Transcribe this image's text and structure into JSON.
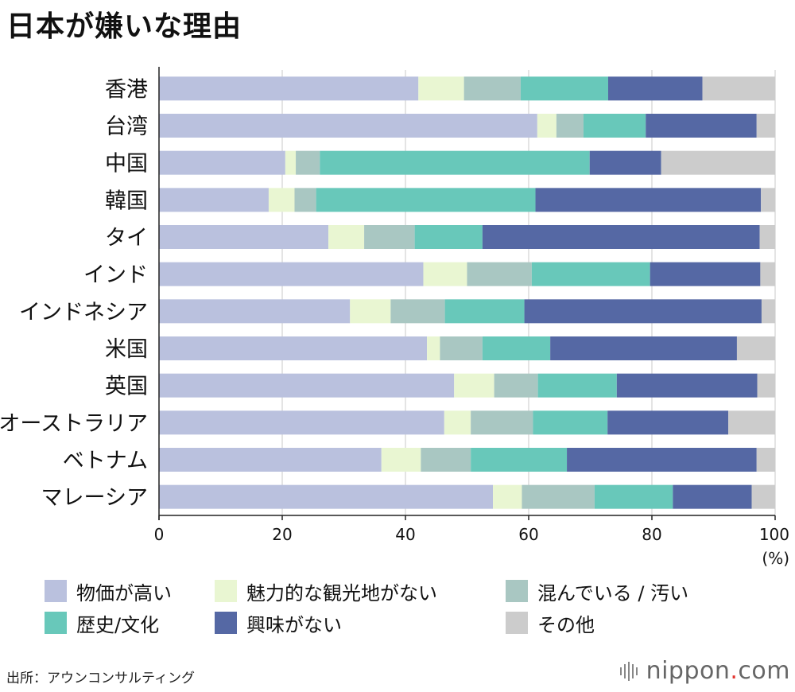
{
  "title": "日本が嫌いな理由",
  "chart_data": {
    "type": "bar",
    "orientation": "horizontal",
    "stacked": true,
    "title": "日本が嫌いな理由",
    "xlabel": "(%)",
    "ylabel": "",
    "xlim": [
      0,
      100
    ],
    "x_ticks": [
      "0",
      "20",
      "40",
      "60",
      "80",
      "100"
    ],
    "x_tick_values": [
      0,
      20,
      40,
      60,
      80,
      100
    ],
    "grid": true,
    "categories": [
      "香港",
      "台湾",
      "中国",
      "韓国",
      "タイ",
      "インド",
      "インドネシア",
      "米国",
      "英国",
      "オーストラリア",
      "ベトナム",
      "マレーシア"
    ],
    "series": [
      {
        "name": "物価が高い",
        "color": "#bac1de",
        "values": [
          42.1,
          61.4,
          20.5,
          17.8,
          27.5,
          42.9,
          31.0,
          43.5,
          47.9,
          46.3,
          36.1,
          54.2
        ]
      },
      {
        "name": "魅力的な観光地がない",
        "color": "#e9f6d2",
        "values": [
          7.4,
          3.1,
          1.7,
          4.2,
          5.8,
          7.1,
          6.6,
          2.1,
          6.5,
          4.3,
          6.4,
          4.7
        ]
      },
      {
        "name": "混んでいる / 汚い",
        "color": "#a9c7c2",
        "values": [
          9.2,
          4.4,
          3.9,
          3.5,
          8.2,
          10.5,
          8.8,
          6.9,
          7.1,
          10.1,
          8.1,
          11.8
        ]
      },
      {
        "name": "歴史/文化",
        "color": "#68c8ba",
        "values": [
          14.2,
          10.1,
          43.8,
          35.6,
          11.0,
          19.2,
          12.9,
          11.0,
          12.8,
          12.1,
          15.6,
          12.7
        ]
      },
      {
        "name": "興味がない",
        "color": "#5568a4",
        "values": [
          15.3,
          18.0,
          11.6,
          36.6,
          45.0,
          17.9,
          38.5,
          30.3,
          22.8,
          19.6,
          30.8,
          12.8
        ]
      },
      {
        "name": "その他",
        "color": "#cccccc",
        "values": [
          11.8,
          3.0,
          18.5,
          2.3,
          2.5,
          2.4,
          2.2,
          6.2,
          2.9,
          7.6,
          3.0,
          3.8
        ]
      }
    ],
    "legend_position": "bottom"
  },
  "source": "出所：アウンコンサルティング",
  "brand": {
    "name": "nippon",
    "dot": ".",
    "suffix": "com"
  }
}
